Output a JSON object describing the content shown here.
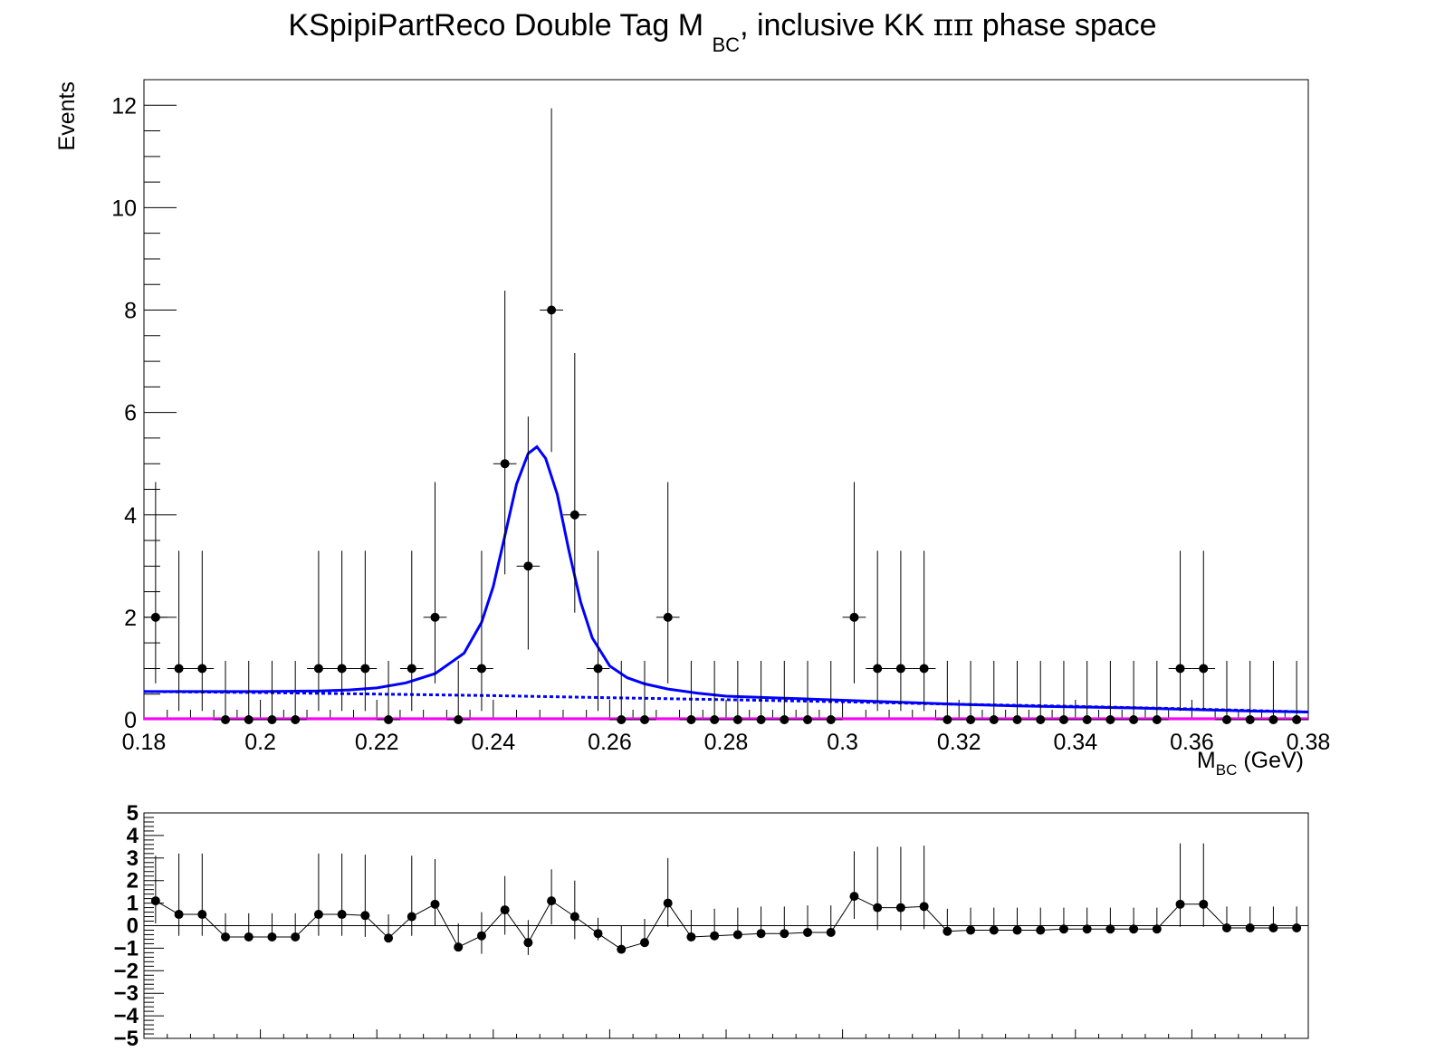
{
  "title": {
    "prefix": "KSpipiPartReco Double Tag M",
    "sub": "BC",
    "suffix": ", inclusive KK",
    "greek": "ππ",
    "tail": " phase space"
  },
  "chart_data": [
    {
      "type": "scatter",
      "title": "KSpipiPartReco Double Tag M BC, inclusive KKππ phase space",
      "xlabel_main": "M",
      "xlabel_sub": "BC",
      "xlabel_unit": " (GeV)",
      "ylabel": "Events",
      "xlim": [
        0.18,
        0.38
      ],
      "ylim": [
        0,
        12.5
      ],
      "x_ticks": [
        0.18,
        0.2,
        0.22,
        0.24,
        0.26,
        0.28,
        0.3,
        0.32,
        0.34,
        0.36,
        0.38
      ],
      "x_tick_labels": [
        "0.18",
        "0.2",
        "0.22",
        "0.24",
        "0.26",
        "0.28",
        "0.3",
        "0.32",
        "0.34",
        "0.36",
        "0.38"
      ],
      "y_ticks": [
        0,
        2,
        4,
        6,
        8,
        10,
        12
      ],
      "y_tick_labels": [
        "0",
        "2",
        "4",
        "6",
        "8",
        "10",
        "12"
      ],
      "bin_width": 0.004,
      "data": {
        "x": [
          0.182,
          0.186,
          0.19,
          0.194,
          0.198,
          0.202,
          0.206,
          0.21,
          0.214,
          0.218,
          0.222,
          0.226,
          0.23,
          0.234,
          0.238,
          0.242,
          0.246,
          0.25,
          0.254,
          0.258,
          0.262,
          0.266,
          0.27,
          0.274,
          0.278,
          0.282,
          0.286,
          0.29,
          0.294,
          0.298,
          0.302,
          0.306,
          0.31,
          0.314,
          0.318,
          0.322,
          0.326,
          0.33,
          0.334,
          0.338,
          0.342,
          0.346,
          0.35,
          0.354,
          0.358,
          0.362,
          0.366,
          0.37,
          0.374,
          0.378
        ],
        "y": [
          2,
          1,
          1,
          0,
          0,
          0,
          0,
          1,
          1,
          1,
          0,
          1,
          2,
          0,
          1,
          5,
          3,
          8,
          4,
          1,
          0,
          0,
          2,
          0,
          0,
          0,
          0,
          0,
          0,
          0,
          2,
          1,
          1,
          1,
          0,
          0,
          0,
          0,
          0,
          0,
          0,
          0,
          0,
          0,
          1,
          1,
          0,
          0,
          0,
          0
        ],
        "err_low": [
          1.29,
          0.83,
          0.83,
          0,
          0,
          0,
          0,
          0.83,
          0.83,
          0.83,
          0,
          0.83,
          1.29,
          0,
          0.83,
          2.16,
          1.63,
          2.77,
          1.91,
          0.83,
          0,
          0,
          1.29,
          0,
          0,
          0,
          0,
          0,
          0,
          0,
          1.29,
          0.83,
          0.83,
          0.83,
          0,
          0,
          0,
          0,
          0,
          0,
          0,
          0,
          0,
          0,
          0.83,
          0.83,
          0,
          0,
          0,
          0
        ],
        "err_high": [
          2.64,
          2.3,
          2.3,
          1.15,
          1.15,
          1.15,
          1.15,
          2.3,
          2.3,
          2.3,
          1.15,
          2.3,
          2.64,
          1.15,
          2.3,
          3.38,
          2.92,
          3.94,
          3.16,
          2.3,
          1.15,
          1.15,
          2.64,
          1.15,
          1.15,
          1.15,
          1.15,
          1.15,
          1.15,
          1.15,
          2.64,
          2.3,
          2.3,
          2.3,
          1.15,
          1.15,
          1.15,
          1.15,
          1.15,
          1.15,
          1.15,
          1.15,
          1.15,
          1.15,
          2.3,
          2.3,
          1.15,
          1.15,
          1.15,
          1.15
        ]
      },
      "series": [
        {
          "name": "",
          "style": "solid",
          "color": "#0000ff",
          "x": [
            0.18,
            0.19,
            0.2,
            0.21,
            0.215,
            0.22,
            0.225,
            0.23,
            0.235,
            0.238,
            0.24,
            0.242,
            0.244,
            0.246,
            0.2475,
            0.249,
            0.251,
            0.253,
            0.255,
            0.257,
            0.26,
            0.263,
            0.266,
            0.27,
            0.275,
            0.28,
            0.29,
            0.3,
            0.31,
            0.32,
            0.33,
            0.34,
            0.35,
            0.36,
            0.37,
            0.38
          ],
          "y": [
            0.55,
            0.55,
            0.55,
            0.56,
            0.58,
            0.62,
            0.72,
            0.9,
            1.3,
            1.9,
            2.6,
            3.6,
            4.6,
            5.2,
            5.33,
            5.1,
            4.4,
            3.3,
            2.3,
            1.6,
            1.05,
            0.82,
            0.7,
            0.6,
            0.52,
            0.46,
            0.42,
            0.38,
            0.34,
            0.3,
            0.27,
            0.25,
            0.23,
            0.2,
            0.17,
            0.15
          ]
        },
        {
          "name": "",
          "style": "dashed",
          "color": "#0000ff",
          "x": [
            0.18,
            0.2,
            0.22,
            0.24,
            0.26,
            0.28,
            0.3,
            0.32,
            0.34,
            0.36,
            0.38
          ],
          "y": [
            0.55,
            0.53,
            0.5,
            0.47,
            0.43,
            0.39,
            0.35,
            0.3,
            0.26,
            0.21,
            0.15
          ]
        },
        {
          "name": "",
          "style": "solid",
          "color": "#ff00ff",
          "x": [
            0.18,
            0.38
          ],
          "y": [
            0.02,
            0.02
          ]
        }
      ]
    },
    {
      "type": "scatter",
      "title": "",
      "xlim": [
        0.18,
        0.38
      ],
      "ylim": [
        -5,
        5
      ],
      "y_ticks": [
        5,
        4,
        3,
        2,
        1,
        0,
        -1,
        -2,
        -3,
        -4,
        -5
      ],
      "y_tick_labels": [
        "5",
        "4",
        "3",
        "2",
        "1",
        "0",
        "−1",
        "−2",
        "−3",
        "−4",
        "−5"
      ],
      "data": {
        "x": [
          0.182,
          0.186,
          0.19,
          0.194,
          0.198,
          0.202,
          0.206,
          0.21,
          0.214,
          0.218,
          0.222,
          0.226,
          0.23,
          0.234,
          0.238,
          0.242,
          0.246,
          0.25,
          0.254,
          0.258,
          0.262,
          0.266,
          0.27,
          0.274,
          0.278,
          0.282,
          0.286,
          0.29,
          0.294,
          0.298,
          0.302,
          0.306,
          0.31,
          0.314,
          0.318,
          0.322,
          0.326,
          0.33,
          0.334,
          0.338,
          0.342,
          0.346,
          0.35,
          0.354,
          0.358,
          0.362,
          0.366,
          0.37,
          0.374,
          0.378
        ],
        "y": [
          1.1,
          0.5,
          0.5,
          -0.5,
          -0.5,
          -0.5,
          -0.5,
          0.5,
          0.5,
          0.45,
          -0.55,
          0.4,
          0.95,
          -0.95,
          -0.45,
          0.7,
          -0.75,
          1.1,
          0.4,
          -0.35,
          -1.05,
          -0.75,
          1.0,
          -0.5,
          -0.45,
          -0.4,
          -0.35,
          -0.35,
          -0.3,
          -0.3,
          1.3,
          0.8,
          0.8,
          0.85,
          -0.25,
          -0.2,
          -0.2,
          -0.2,
          -0.2,
          -0.15,
          -0.15,
          -0.15,
          -0.15,
          -0.15,
          0.95,
          0.95,
          -0.1,
          -0.1,
          -0.1,
          -0.1
        ],
        "err_low": [
          1.0,
          0.95,
          0.95,
          0,
          0,
          0,
          0,
          0.95,
          0.95,
          0.95,
          0,
          0.85,
          0.95,
          0,
          0.8,
          1.1,
          0.55,
          1.05,
          1.0,
          0.3,
          0,
          0,
          1.05,
          0,
          0,
          0,
          0,
          0,
          0,
          0,
          1.0,
          1.0,
          1.0,
          1.0,
          0,
          0,
          0,
          0,
          0,
          0,
          0,
          0,
          0,
          0,
          1.0,
          1.0,
          0,
          0,
          0,
          0
        ],
        "err_high": [
          2.0,
          2.7,
          2.7,
          1.05,
          1.05,
          1.05,
          1.05,
          2.7,
          2.7,
          2.7,
          1.05,
          2.7,
          2.0,
          1.05,
          1.05,
          1.5,
          1.0,
          1.4,
          1.6,
          0.7,
          1.05,
          1.05,
          2.0,
          1.2,
          1.2,
          1.2,
          1.2,
          1.2,
          1.2,
          1.2,
          2.0,
          2.7,
          2.7,
          2.7,
          1.0,
          1.0,
          1.0,
          1.0,
          1.0,
          0.95,
          0.95,
          0.95,
          0.95,
          0.95,
          2.7,
          2.7,
          0.95,
          0.95,
          0.95,
          0.95
        ]
      }
    }
  ]
}
